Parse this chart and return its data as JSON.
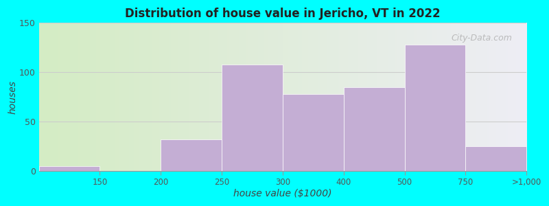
{
  "title": "Distribution of house value in Jericho, VT in 2022",
  "xlabel": "house value ($1000)",
  "ylabel": "houses",
  "bar_color": "#c4aed4",
  "background_outer": "#00ffff",
  "background_inner_left": "#d4ecc4",
  "background_inner_right": "#eeeef5",
  "ylim": [
    0,
    150
  ],
  "yticks": [
    0,
    50,
    100,
    150
  ],
  "bin_labels": [
    "150",
    "200",
    "250",
    "300",
    "400",
    "500",
    "750",
    ">1,000"
  ],
  "bar_heights": [
    5,
    0,
    32,
    108,
    78,
    85,
    128,
    25
  ],
  "n_bins": 8,
  "grid_color": "#cccccc",
  "watermark": "City-Data.com"
}
